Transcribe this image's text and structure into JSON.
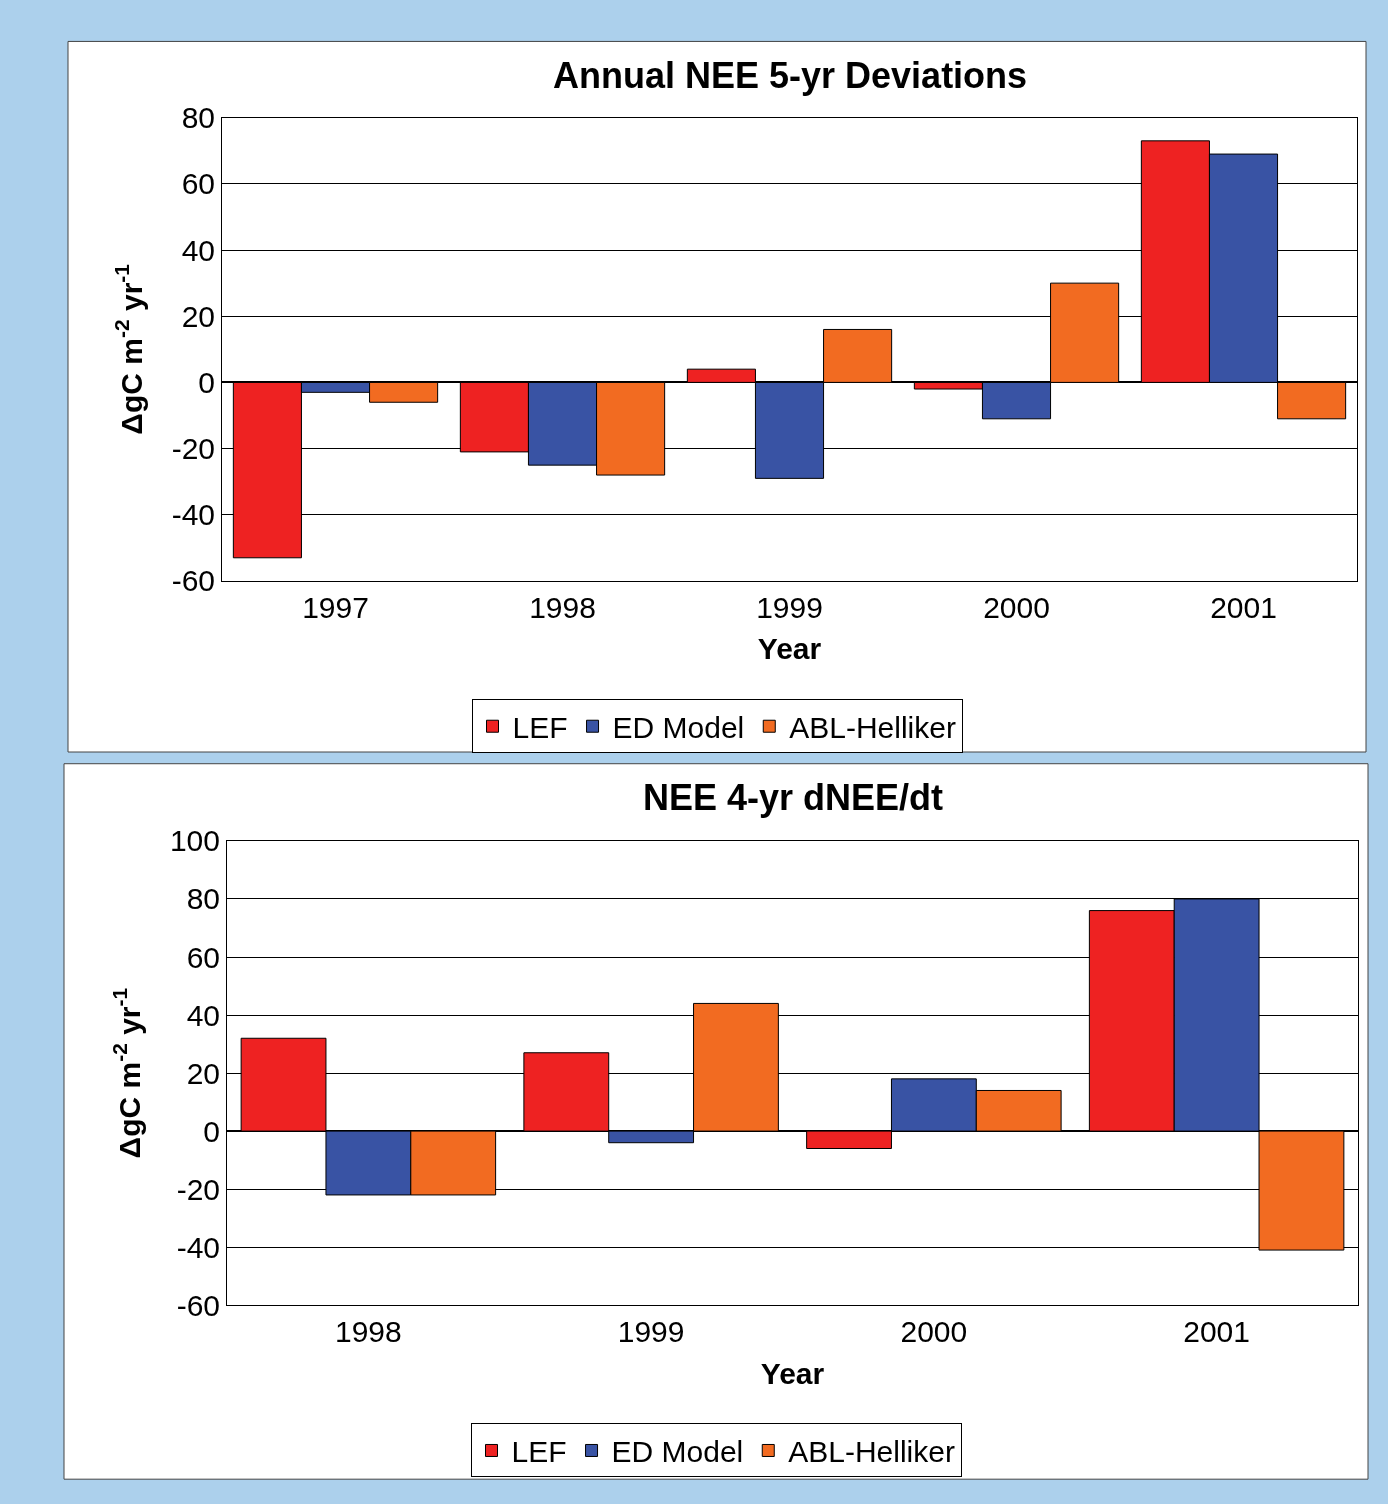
{
  "chart_data": [
    {
      "type": "bar",
      "title": "Annual NEE 5-yr Deviations",
      "xlabel": "Year",
      "ylabel": "ΔgC m$^{-2}$ yr$^{-1}$",
      "categories": [
        "1997",
        "1998",
        "1999",
        "2000",
        "2001"
      ],
      "series": [
        {
          "name": "LEF",
          "color": "#ee2222",
          "values": [
            -53,
            -21,
            4,
            -2,
            73
          ]
        },
        {
          "name": "ED Model",
          "color": "#3953a4",
          "values": [
            -3,
            -25,
            -29,
            -11,
            69
          ]
        },
        {
          "name": "ABL-Helliker",
          "color": "#f26b21",
          "values": [
            -6,
            -28,
            16,
            30,
            -11
          ]
        }
      ],
      "ylim": [
        -60,
        80
      ],
      "yticks": [
        -60,
        -40,
        -20,
        0,
        20,
        40,
        60,
        80
      ],
      "grid": "y",
      "legend": "bottom"
    },
    {
      "type": "bar",
      "title": "NEE 4-yr dNEE/dt",
      "xlabel": "Year",
      "ylabel": "ΔgC m$^{-2}$ yr$^{-1}$",
      "categories": [
        "1998",
        "1999",
        "2000",
        "2001"
      ],
      "series": [
        {
          "name": "LEF",
          "color": "#ee2222",
          "values": [
            32,
            27,
            -6,
            76
          ]
        },
        {
          "name": "ED Model",
          "color": "#3953a4",
          "values": [
            -22,
            -4,
            18,
            80
          ]
        },
        {
          "name": "ABL-Helliker",
          "color": "#f26b21",
          "values": [
            -22,
            44,
            14,
            -41
          ]
        }
      ],
      "ylim": [
        -60,
        100
      ],
      "yticks": [
        -60,
        -40,
        -20,
        0,
        20,
        40,
        60,
        80,
        100
      ],
      "grid": "y",
      "legend": "bottom"
    }
  ]
}
